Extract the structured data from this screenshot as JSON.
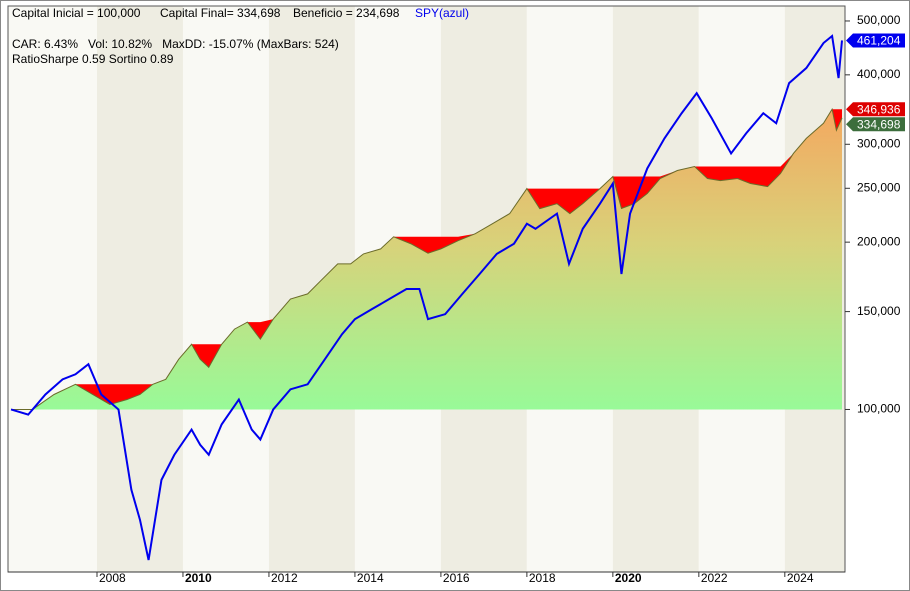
{
  "chart_data": {
    "type": "equity",
    "header": [
      "Capital Inicial = 100,000",
      "Capital Final= 334,698",
      "Beneficio = 234,698"
    ],
    "legend_text": "SPY(azul)",
    "stats": [
      "CAR: 6.43%   Vol: 10.82%   MaxDD: -15.07% (MaxBars: 524)",
      "RatioSharpe 0.59 Sortino 0.89"
    ],
    "log_scale": true,
    "xlim": [
      2005.93,
      2025.4
    ],
    "xticks": [
      2008,
      2010,
      2012,
      2014,
      2016,
      2018,
      2020,
      2022,
      2024
    ],
    "ylim": [
      51000,
      532000
    ],
    "yticks": [
      {
        "value": 100000,
        "label": "100,000"
      },
      {
        "value": 150000,
        "label": "150,000"
      },
      {
        "value": 200000,
        "label": "200,000"
      },
      {
        "value": 250000,
        "label": "250,000"
      },
      {
        "value": 300000,
        "label": "300,000"
      },
      {
        "value": 400000,
        "label": "400,000"
      },
      {
        "value": 500000,
        "label": "500,000"
      }
    ],
    "series": [
      {
        "color": "#6b6b2a",
        "end_label": "334,698",
        "x": [
          2006.0,
          2006.5,
          2007.0,
          2007.5,
          2007.9,
          2008.3,
          2008.7,
          2009.0,
          2009.3,
          2009.6,
          2009.9,
          2010.2,
          2010.4,
          2010.6,
          2010.9,
          2011.2,
          2011.5,
          2011.8,
          2012.1,
          2012.5,
          2012.9,
          2013.2,
          2013.6,
          2013.9,
          2014.2,
          2014.6,
          2014.9,
          2015.3,
          2015.7,
          2016.0,
          2016.4,
          2016.8,
          2017.2,
          2017.6,
          2018.0,
          2018.3,
          2018.7,
          2019.0,
          2019.3,
          2019.7,
          2020.0,
          2020.2,
          2020.5,
          2020.8,
          2021.1,
          2021.5,
          2021.9,
          2022.2,
          2022.5,
          2022.9,
          2023.2,
          2023.6,
          2023.9,
          2024.2,
          2024.5,
          2024.9,
          2025.1,
          2025.2,
          2025.33
        ],
        "values": [
          100000,
          100000,
          106400,
          111000,
          106400,
          102100,
          104200,
          106400,
          111000,
          113300,
          123100,
          131000,
          123100,
          119100,
          131000,
          139500,
          143600,
          133800,
          145400,
          158000,
          161400,
          170300,
          182800,
          182800,
          190500,
          194500,
          204500,
          198700,
          191000,
          194500,
          201200,
          207100,
          215900,
          225100,
          249700,
          229800,
          234600,
          225100,
          234600,
          249700,
          262500,
          230000,
          234600,
          244600,
          260300,
          269100,
          273600,
          260300,
          258100,
          260300,
          255000,
          251800,
          265800,
          288800,
          307400,
          327300,
          346936,
          317900,
          334698
        ]
      },
      {
        "name": "SPY",
        "color": "#0000ee",
        "end_label": "461,204",
        "x": [
          2006.0,
          2006.4,
          2006.8,
          2007.2,
          2007.5,
          2007.8,
          2008.1,
          2008.5,
          2008.8,
          2009.0,
          2009.2,
          2009.5,
          2009.8,
          2010.2,
          2010.4,
          2010.6,
          2010.9,
          2011.3,
          2011.6,
          2011.8,
          2012.1,
          2012.5,
          2012.9,
          2013.3,
          2013.7,
          2014.0,
          2014.4,
          2014.8,
          2015.2,
          2015.5,
          2015.7,
          2016.1,
          2016.5,
          2016.9,
          2017.3,
          2017.7,
          2018.0,
          2018.2,
          2018.7,
          2018.98,
          2019.3,
          2019.7,
          2020.0,
          2020.2,
          2020.4,
          2020.8,
          2021.2,
          2021.6,
          2021.95,
          2022.3,
          2022.75,
          2023.1,
          2023.5,
          2023.8,
          2024.1,
          2024.5,
          2024.9,
          2025.1,
          2025.25,
          2025.33
        ],
        "values": [
          100000,
          97900,
          106400,
          113300,
          115700,
          120600,
          106400,
          100000,
          71700,
          63300,
          53600,
          74700,
          82900,
          92000,
          86400,
          82900,
          94000,
          104200,
          92000,
          88300,
          100000,
          108700,
          111000,
          123100,
          136600,
          145400,
          151600,
          158000,
          164700,
          164700,
          145400,
          148400,
          161400,
          175300,
          190500,
          198700,
          215900,
          211400,
          225100,
          182800,
          211400,
          234600,
          255000,
          175300,
          225100,
          271400,
          307400,
          341200,
          370700,
          334200,
          288800,
          313900,
          341200,
          327300,
          386600,
          411400,
          456400,
          469900,
          394700,
          461204
        ]
      }
    ],
    "peak": {
      "value": 346936,
      "label": "346,936"
    }
  }
}
